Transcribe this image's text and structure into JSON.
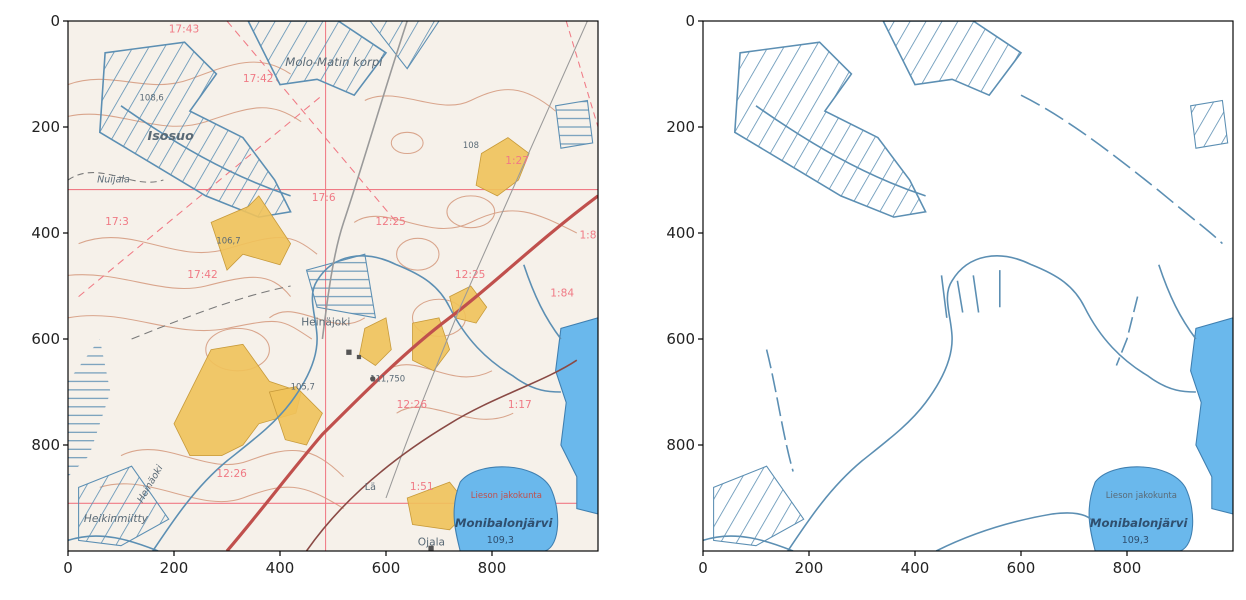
{
  "colors": {
    "map_bg": "#f6f1ea",
    "contour": "#d9a58c",
    "water_line": "#5c8fb3",
    "lake": "#6ab8ec",
    "field": "#efc25a",
    "road": "#c0504d",
    "grid": "#f07a85",
    "axis": "#000000"
  },
  "chart_data": [
    {
      "type": "image",
      "content": "topographic map sheet (original)",
      "xlim": [
        0,
        1000
      ],
      "ylim": [
        1000,
        0
      ],
      "x_ticks": [
        0,
        200,
        400,
        600,
        800
      ],
      "y_ticks": [
        0,
        200,
        400,
        600,
        800
      ],
      "map_labels": [
        "Molo-Matin korpi",
        "Isosuo",
        "Nuijala",
        "Heinäjoki",
        "Heikinmiitty",
        "Heinäoki",
        "Lieson jakokunta",
        "Monibalonjärvi",
        "Ojala",
        "Lä"
      ],
      "elevation_labels": [
        "108,6",
        "106,7",
        "105,7",
        "111,750",
        "109,3",
        "108"
      ],
      "grid_codes": [
        "17:43",
        "17:42",
        "17:6",
        "12:25",
        "17:3",
        "17:42",
        "12:25",
        "1:84",
        "1:27",
        "12:26",
        "1:17",
        "12:26",
        "1:51",
        "1:8"
      ]
    },
    {
      "type": "image",
      "content": "extracted water features (segmentation mask)",
      "xlim": [
        0,
        1000
      ],
      "ylim": [
        1000,
        0
      ],
      "x_ticks": [
        0,
        200,
        400,
        600,
        800
      ],
      "y_ticks": [
        0,
        200,
        400,
        600,
        800
      ],
      "map_labels": [
        "Lieson jakokunta",
        "Monibalonjärvi"
      ],
      "elevation_labels": [
        "109,3"
      ]
    }
  ]
}
